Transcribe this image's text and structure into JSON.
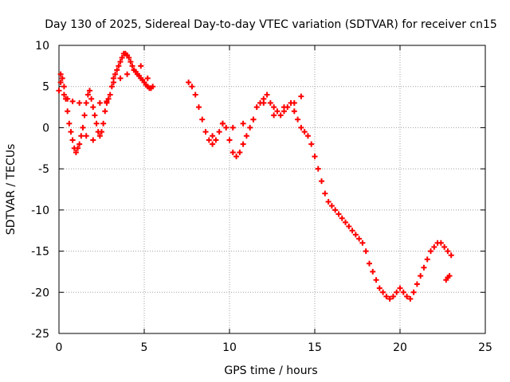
{
  "chart_data": {
    "type": "scatter",
    "title": "Day 130 of 2025, Sidereal Day-to-day VTEC variation (SDTVAR) for receiver cn15",
    "xlabel": "GPS time / hours",
    "ylabel": "SDTVAR / TECUs",
    "xlim": [
      0,
      25
    ],
    "ylim": [
      -25,
      10
    ],
    "xticks": [
      0,
      5,
      10,
      15,
      20,
      25
    ],
    "yticks": [
      -25,
      -20,
      -15,
      -10,
      -5,
      0,
      5,
      10
    ],
    "grid": true,
    "marker": "+",
    "color": "#ff0000",
    "series": [
      {
        "name": "SDTVAR",
        "x": [
          0.0,
          0.1,
          0.2,
          0.3,
          0.4,
          0.5,
          0.6,
          0.7,
          0.8,
          0.9,
          1.0,
          1.1,
          1.2,
          1.3,
          1.4,
          1.5,
          1.6,
          1.7,
          1.8,
          1.9,
          2.0,
          2.1,
          2.2,
          2.3,
          2.4,
          2.5,
          2.6,
          2.7,
          2.8,
          2.9,
          3.0,
          3.1,
          3.2,
          3.3,
          3.4,
          3.5,
          3.6,
          3.7,
          3.8,
          3.9,
          4.0,
          4.1,
          4.2,
          4.3,
          4.4,
          4.5,
          4.6,
          4.7,
          4.8,
          4.9,
          5.0,
          5.1,
          5.2,
          5.3,
          5.4,
          5.5,
          7.6,
          7.8,
          8.0,
          8.2,
          8.4,
          8.6,
          8.8,
          9.0,
          9.2,
          9.4,
          9.6,
          9.8,
          10.0,
          10.2,
          10.4,
          10.6,
          10.8,
          11.0,
          11.2,
          11.4,
          11.6,
          11.8,
          12.0,
          12.2,
          12.4,
          12.6,
          12.8,
          13.0,
          13.2,
          13.4,
          13.6,
          13.8,
          14.0,
          14.2,
          14.4,
          14.6,
          14.8,
          15.0,
          15.2,
          15.4,
          15.6,
          15.8,
          16.0,
          16.2,
          16.4,
          16.6,
          16.8,
          17.0,
          17.2,
          17.4,
          17.6,
          17.8,
          18.0,
          18.2,
          18.4,
          18.6,
          18.8,
          19.0,
          19.2,
          19.4,
          19.6,
          19.8,
          20.0,
          20.2,
          20.4,
          20.6,
          20.8,
          21.0,
          21.2,
          21.4,
          21.6,
          21.8,
          22.0,
          22.2,
          22.4,
          22.6,
          22.8,
          23.0,
          0.1,
          0.3,
          0.5,
          0.8,
          1.2,
          1.6,
          2.0,
          2.4,
          2.8,
          3.2,
          3.6,
          4.0,
          4.4,
          4.8,
          5.2,
          9.0,
          9.6,
          10.2,
          10.8,
          11.4,
          12.0,
          12.6,
          13.2,
          13.8,
          14.2,
          22.7,
          22.8,
          22.9
        ],
        "y": [
          4.5,
          6.5,
          6.0,
          5.0,
          3.5,
          2.0,
          0.5,
          -0.5,
          -1.5,
          -2.5,
          -3.0,
          -2.5,
          -2.0,
          -1.0,
          0.0,
          1.5,
          3.0,
          4.0,
          4.5,
          3.5,
          2.5,
          1.5,
          0.5,
          -0.5,
          -1.0,
          -0.5,
          0.5,
          2.0,
          3.0,
          3.5,
          4.0,
          5.0,
          6.0,
          6.5,
          7.0,
          7.5,
          8.0,
          8.5,
          9.0,
          9.0,
          8.8,
          8.5,
          8.0,
          7.5,
          7.0,
          6.8,
          6.5,
          6.3,
          6.0,
          5.8,
          5.5,
          5.2,
          5.0,
          4.8,
          4.8,
          5.0,
          5.5,
          5.0,
          4.0,
          2.5,
          1.0,
          -0.5,
          -1.5,
          -2.0,
          -1.5,
          -0.5,
          0.5,
          0.0,
          -1.5,
          -3.0,
          -3.5,
          -3.0,
          -2.0,
          -1.0,
          0.0,
          1.0,
          2.5,
          3.0,
          3.5,
          4.0,
          3.0,
          2.5,
          2.0,
          1.5,
          2.0,
          2.5,
          3.0,
          2.0,
          1.0,
          0.0,
          -0.5,
          -1.0,
          -2.0,
          -3.5,
          -5.0,
          -6.5,
          -8.0,
          -9.0,
          -9.5,
          -10.0,
          -10.5,
          -11.0,
          -11.5,
          -12.0,
          -12.5,
          -13.0,
          -13.5,
          -14.0,
          -15.0,
          -16.5,
          -17.5,
          -18.5,
          -19.5,
          -20.0,
          -20.5,
          -20.8,
          -20.5,
          -20.0,
          -19.5,
          -20.0,
          -20.5,
          -20.8,
          -20.0,
          -19.0,
          -18.0,
          -17.0,
          -16.0,
          -15.0,
          -14.5,
          -14.0,
          -14.0,
          -14.5,
          -15.0,
          -15.5,
          5.5,
          4.0,
          3.5,
          3.2,
          3.0,
          -1.0,
          -1.5,
          3.0,
          3.2,
          5.5,
          6.0,
          6.5,
          7.0,
          7.5,
          6.0,
          -1.0,
          0.5,
          0.0,
          0.5,
          1.0,
          3.0,
          1.5,
          2.5,
          3.0,
          3.8,
          -18.5,
          -18.2,
          -18.0
        ]
      }
    ]
  }
}
